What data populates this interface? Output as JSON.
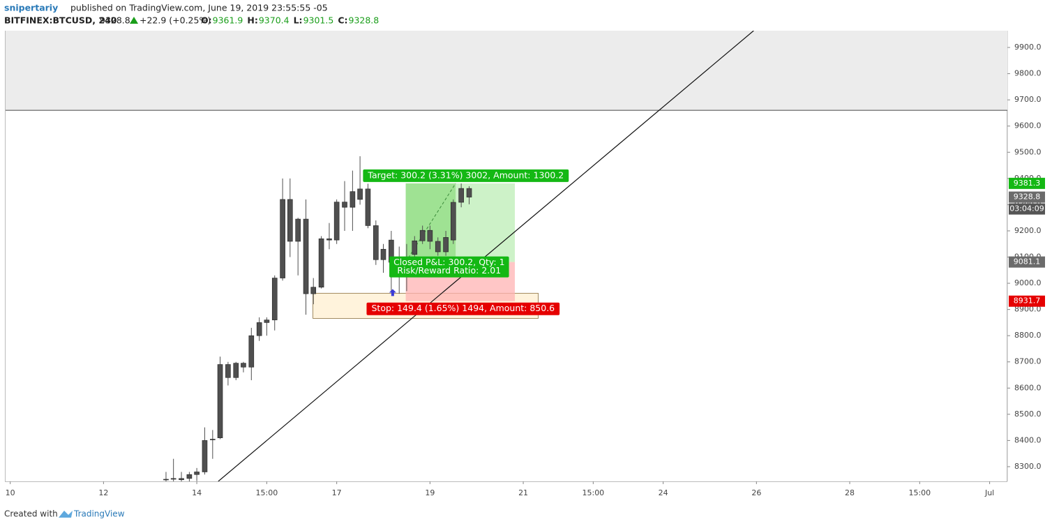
{
  "header": {
    "author": "snipertariy",
    "published": "published on TradingView.com, June 19, 2019 23:55:55 -05",
    "symbol": "BITFINEX:BTCUSD, 240",
    "last": "9328.8",
    "change": "+22.9 (+0.25%)",
    "ohlc": [
      {
        "label": "O:",
        "value": "9361.9"
      },
      {
        "label": "H:",
        "value": "9370.4"
      },
      {
        "label": "L:",
        "value": "9301.5"
      },
      {
        "label": "C:",
        "value": "9328.8"
      }
    ]
  },
  "chart_data": {
    "type": "candlestick",
    "x": [
      13.34,
      13.5,
      13.67,
      13.84,
      14.0,
      14.17,
      14.34,
      14.5,
      14.67,
      14.84,
      15.0,
      15.17,
      15.34,
      15.5,
      15.67,
      15.84,
      16.0,
      16.17,
      16.34,
      16.5,
      16.67,
      16.84,
      17.0,
      17.17,
      17.34,
      17.5,
      17.67,
      17.84,
      18.0,
      18.17,
      18.34,
      18.5,
      18.67,
      18.84,
      19.0,
      19.17,
      19.34,
      19.5,
      19.67,
      19.84
    ],
    "open": [
      8250,
      8252,
      8250,
      8255,
      8270,
      8280,
      8405,
      8410,
      8690,
      8640,
      8695,
      8680,
      8800,
      8850,
      8860,
      9020,
      9320,
      9160,
      9245,
      8960,
      8985,
      9170,
      9165,
      9310,
      9290,
      9320,
      9360,
      9220,
      9090,
      9165,
      9080,
      9075,
      9110,
      9162,
      9202,
      9160,
      9120,
      9165,
      9309,
      9361.9
    ],
    "high": [
      8280,
      8330,
      8280,
      8280,
      8295,
      8450,
      8440,
      8720,
      8700,
      8700,
      8700,
      8830,
      8870,
      8870,
      9030,
      9400,
      9400,
      9250,
      9320,
      9020,
      9180,
      9230,
      9320,
      9390,
      9430,
      9485,
      9380,
      9240,
      9150,
      9200,
      9140,
      9150,
      9180,
      9220,
      9220,
      9175,
      9200,
      9320,
      9381,
      9370.4
    ],
    "low": [
      8240,
      8240,
      8240,
      8240,
      8245,
      8270,
      8330,
      8405,
      8610,
      8630,
      8660,
      8630,
      8780,
      8800,
      8820,
      9010,
      9100,
      9030,
      8880,
      8920,
      8980,
      9130,
      9150,
      9200,
      9200,
      9300,
      9210,
      9070,
      9040,
      8965,
      8960,
      8970,
      9095,
      9150,
      9130,
      9105,
      9105,
      9150,
      9290,
      9301.5
    ],
    "close": [
      8252,
      8255,
      8255,
      8270,
      8280,
      8400,
      8405,
      8690,
      8640,
      8695,
      8680,
      8800,
      8850,
      8860,
      9020,
      9320,
      9160,
      9245,
      8960,
      8985,
      9170,
      9165,
      9310,
      9290,
      9350,
      9360,
      9220,
      9090,
      9130,
      9080,
      9075,
      9090,
      9162,
      9202,
      9160,
      9120,
      9175,
      9309,
      9362,
      9328.8
    ],
    "body_color": "#4f4f4f",
    "wick_color": "#4f4f4f",
    "xlim": [
      9.9,
      31.38
    ],
    "ylim": [
      8244,
      9964
    ],
    "xticks": [
      10,
      12,
      14,
      {
        "value": 15.5,
        "label": "15:00"
      },
      17,
      19,
      21,
      {
        "value": 22.5,
        "label": "15:00"
      },
      24,
      26,
      28,
      {
        "value": 29.5,
        "label": "15:00"
      },
      {
        "value": 31,
        "label": "Jul"
      }
    ],
    "yticks": [
      {
        "value": 8300,
        "label": "8300.0"
      },
      {
        "value": 8400,
        "label": "8400.0"
      },
      {
        "value": 8500,
        "label": "8500.0"
      },
      {
        "value": 8600,
        "label": "8600.0"
      },
      {
        "value": 8700,
        "label": "8700.0"
      },
      {
        "value": 8800,
        "label": "8800.0"
      },
      {
        "value": 8900,
        "label": "8900.0"
      },
      {
        "value": 9000,
        "label": "9000.0"
      },
      {
        "value": 9100,
        "label": "9100.0"
      },
      {
        "value": 9200,
        "label": "9200.0"
      },
      {
        "value": 9300,
        "label": "9300.0"
      },
      {
        "value": 9400,
        "label": "9400.0"
      },
      {
        "value": 9500,
        "label": "9500.0"
      },
      {
        "value": 9600,
        "label": "9600.0"
      },
      {
        "value": 9700,
        "label": "9700.0"
      },
      {
        "value": 9800,
        "label": "9800.0"
      },
      {
        "value": 9900,
        "label": "9900.0"
      }
    ],
    "zone": {
      "y": [
        9660,
        9964
      ],
      "color": "#ececec"
    },
    "trendline": {
      "x": [
        14.46,
        25.94
      ],
      "y": [
        8244,
        9964
      ],
      "color": "#111111"
    },
    "box": {
      "x": [
        16.49,
        21.32
      ],
      "y": [
        8866,
        8962
      ],
      "color": "#fff3dc"
    },
    "position": {
      "x": [
        18.48,
        20.82
      ],
      "close_x": 19.55,
      "entry": 9081.1,
      "target": 9381.3,
      "stop": 8931.7,
      "target_label": "Target: 300.2 (3.31%) 3002, Amount: 1300.2",
      "pnl_label": "Closed P&L: 300.2, Qty: 1",
      "rr_label": "Risk/Reward Ratio: 2.01",
      "stop_label": "Stop: 149.4 (1.65%) 1494, Amount: 850.6"
    },
    "entry_marker": {
      "x": 18.2,
      "y": 8962
    },
    "price_tags": [
      {
        "value": 9381.3,
        "color": "#14b814"
      },
      {
        "value": 9328.8,
        "color": "#6b6b6b"
      },
      {
        "value": 9081.1,
        "color": "#6b6b6b"
      },
      {
        "value": 8931.7,
        "color": "#e50000"
      }
    ],
    "timer": {
      "text": "03:04:09",
      "color": "#555555"
    }
  },
  "footer": {
    "text": "Created with",
    "brand": "TradingView"
  }
}
